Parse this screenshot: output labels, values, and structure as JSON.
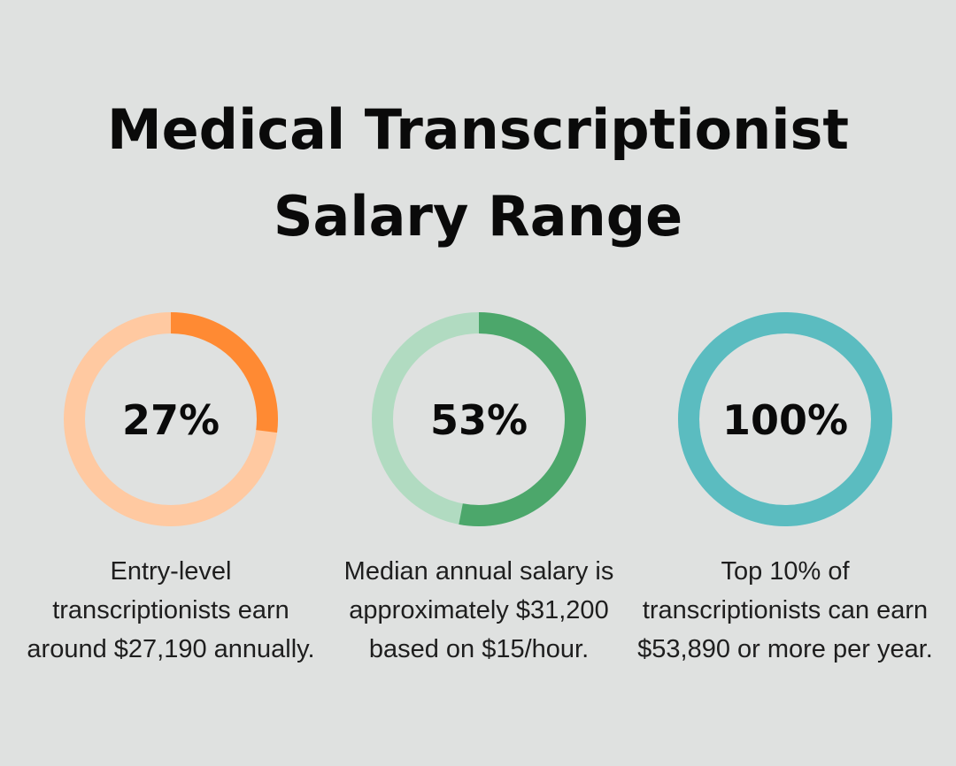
{
  "chart_data": {
    "type": "pie",
    "variant": "donut",
    "title_lines": [
      "Medical Transcriptionist",
      "Salary Range"
    ],
    "charts": [
      {
        "value": 27,
        "label": "27%",
        "caption": "Entry-level transcriptionists earn around $27,190 annually.",
        "color": "#ff8a33",
        "track_color": "#ffc9a1"
      },
      {
        "value": 53,
        "label": "53%",
        "caption": "Median annual salary is approximately $31,200 based on $15/hour.",
        "color": "#4ca76b",
        "track_color": "#b1dbc1"
      },
      {
        "value": 100,
        "label": "100%",
        "caption": "Top 10% of transcriptionists can earn $53,890 or more per year.",
        "color": "#5bbcc0",
        "track_color": "#a9dfe1"
      }
    ]
  },
  "background": "#dfe1e0"
}
